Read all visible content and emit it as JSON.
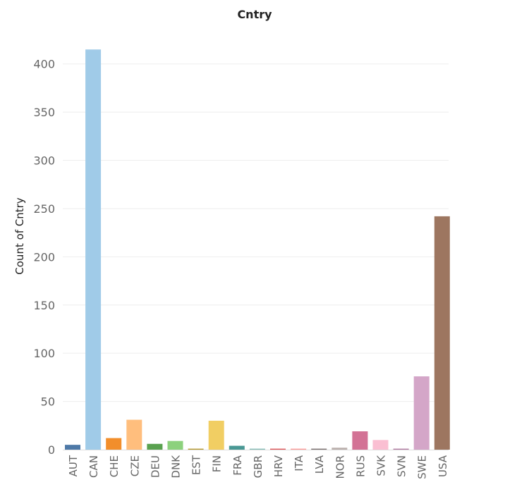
{
  "chart_data": {
    "type": "bar",
    "title": "Cntry",
    "xlabel": "",
    "ylabel": "Count of Cntry",
    "ylim": [
      0,
      440
    ],
    "yticks": [
      0,
      50,
      100,
      150,
      200,
      250,
      300,
      350,
      400
    ],
    "grid": true,
    "categories": [
      "AUT",
      "CAN",
      "CHE",
      "CZE",
      "DEU",
      "DNK",
      "EST",
      "FIN",
      "FRA",
      "GBR",
      "HRV",
      "ITA",
      "LVA",
      "NOR",
      "RUS",
      "SVK",
      "SVN",
      "SWE",
      "USA"
    ],
    "values": [
      5,
      415,
      12,
      31,
      6,
      9,
      1,
      30,
      4,
      1,
      1,
      1,
      1,
      2,
      19,
      10,
      1,
      76,
      242
    ],
    "colors": [
      "#4e79a7",
      "#a0cbe8",
      "#f28e2b",
      "#ffbe7d",
      "#59a14f",
      "#8cd17d",
      "#b6992d",
      "#f1ce63",
      "#499894",
      "#86bcb6",
      "#e15759",
      "#ff9d9a",
      "#79706e",
      "#bab0ac",
      "#d37295",
      "#fabfd2",
      "#b07aa1",
      "#d4a6c8",
      "#9d7660"
    ]
  }
}
